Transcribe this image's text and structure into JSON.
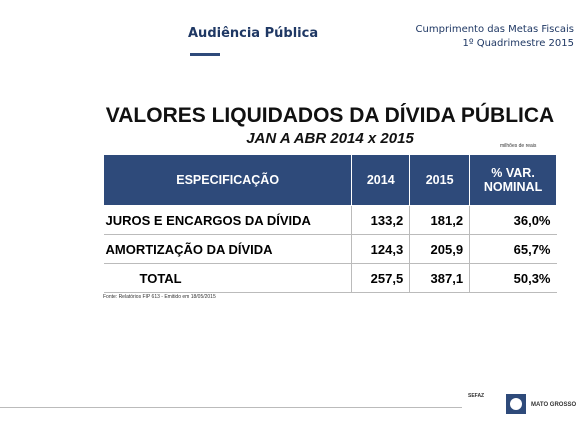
{
  "header": {
    "title": "Audiência Pública",
    "subtitle_lines": [
      "Cumprimento das Metas Fiscais",
      "1º Quadrimestre 2015"
    ]
  },
  "table": {
    "title": "VALORES LIQUIDADOS DA DÍVIDA PÚBLICA",
    "subtitle": "JAN A ABR 2014 x 2015",
    "unit": "milhões de reais",
    "columns": [
      "ESPECIFICAÇÃO",
      "2014",
      "2015",
      "% VAR. NOMINAL"
    ],
    "rows": [
      [
        "JUROS E ENCARGOS DA DÍVIDA",
        "133,2",
        "181,2",
        "36,0%"
      ],
      [
        "AMORTIZAÇÃO DA DÍVIDA",
        "124,3",
        "205,9",
        "65,7%"
      ],
      [
        "TOTAL",
        "257,5",
        "387,1",
        "50,3%"
      ]
    ]
  },
  "footnote": "Fonte: Relatórios FIP 613 - Emitido em 18/05/2015",
  "footer": {
    "agency": "SEFAZ",
    "state": "MATO GROSSO"
  }
}
